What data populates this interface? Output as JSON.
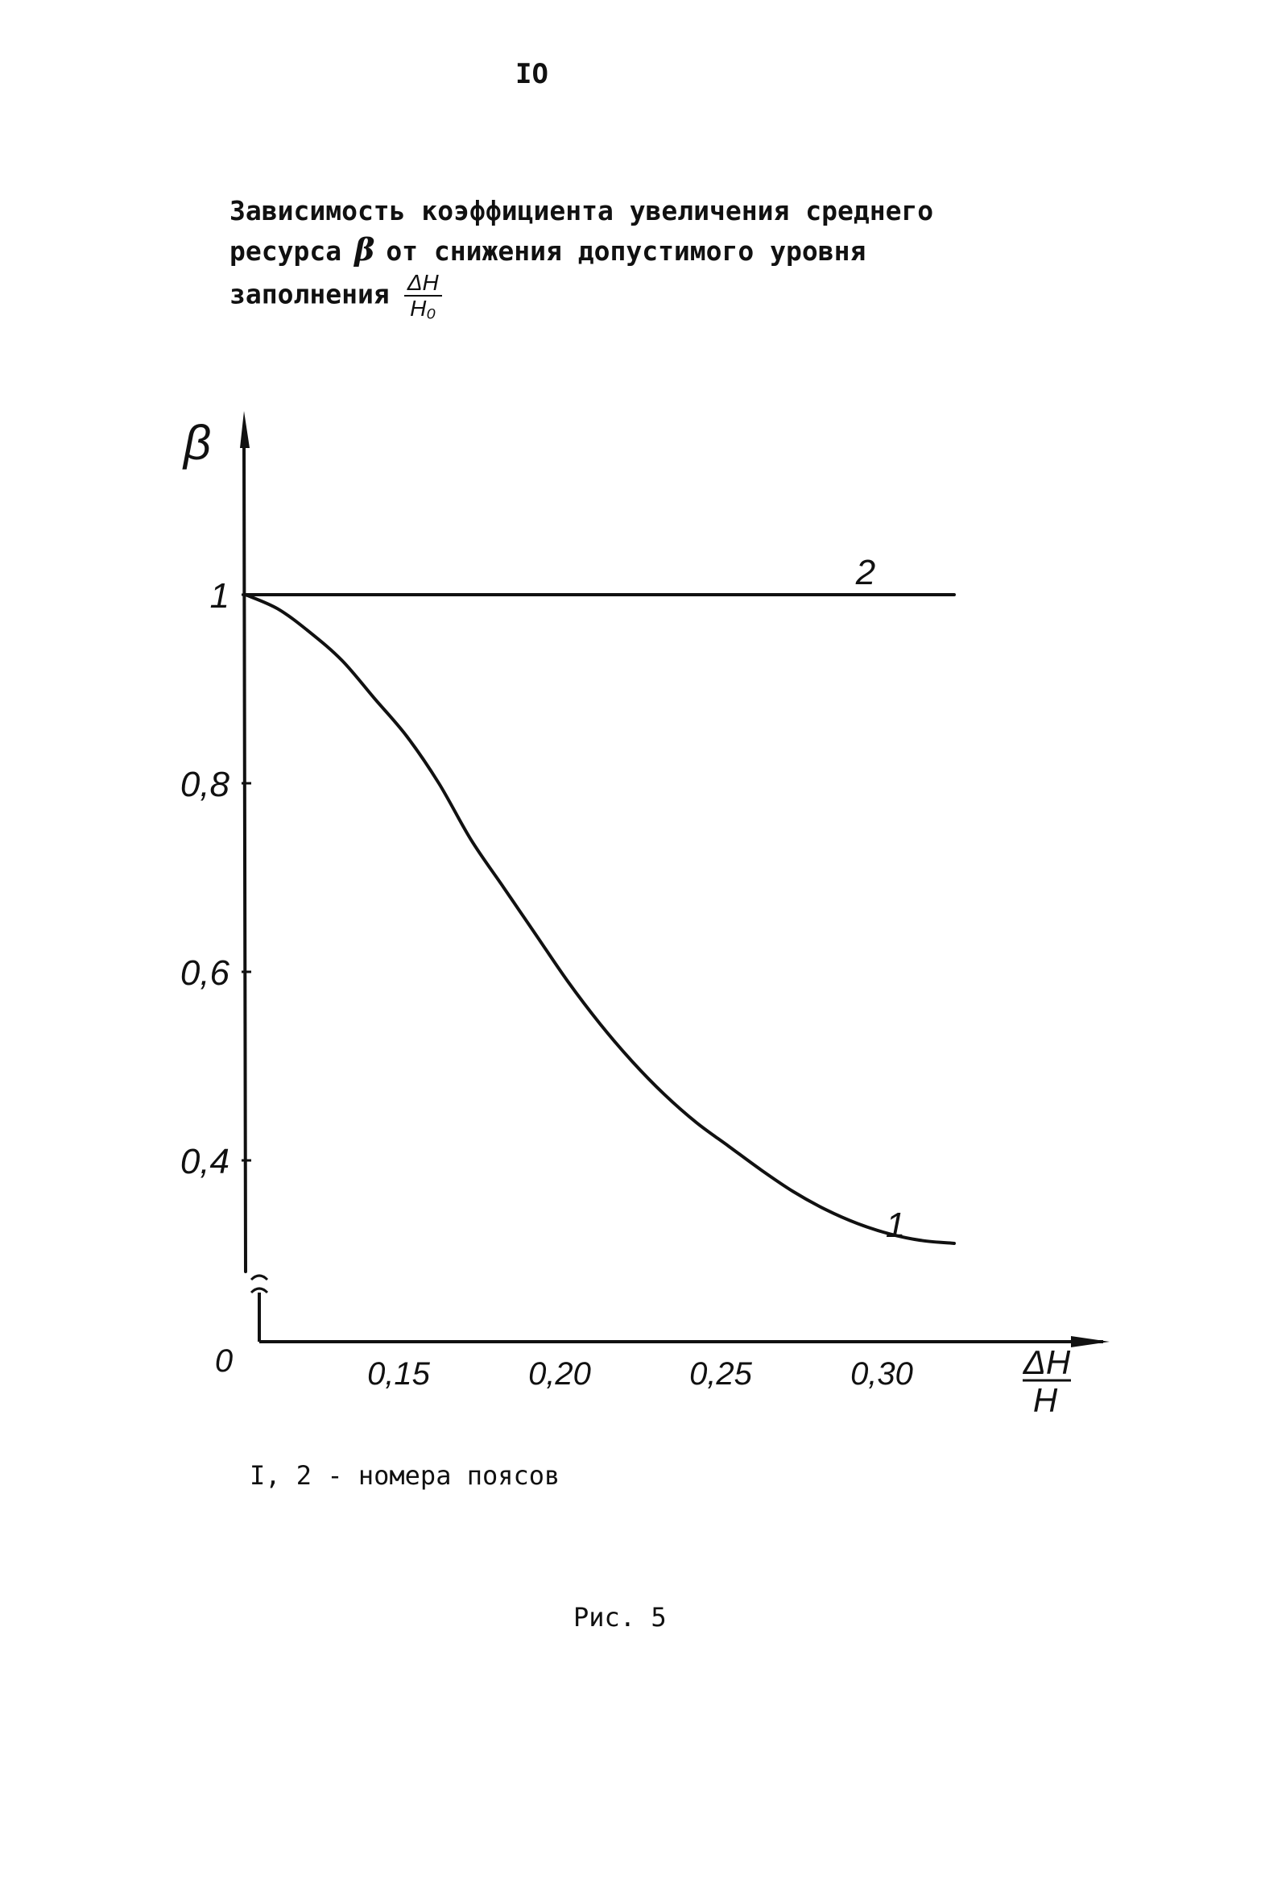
{
  "page_number": "IO",
  "caption": {
    "line1": "Зависимость коэффициента увеличения среднего",
    "line2_pre": "ресурса",
    "line2_symbol": "β",
    "line2_post": "от снижения допустимого уровня",
    "line3_pre": "заполнения",
    "fraction_num": "ΔH",
    "fraction_den": "H₀"
  },
  "chart_data": {
    "type": "line",
    "y_axis_label": "β",
    "x_axis_label_num": "ΔH",
    "x_axis_label_den": "H",
    "origin_label": "0",
    "y_ticks": [
      {
        "value": 1.0,
        "label": "1"
      },
      {
        "value": 0.8,
        "label": "0,8"
      },
      {
        "value": 0.6,
        "label": "0,6"
      },
      {
        "value": 0.4,
        "label": "0,4"
      }
    ],
    "x_ticks": [
      {
        "value": 0.15,
        "label": "0,15"
      },
      {
        "value": 0.2,
        "label": "0,20"
      },
      {
        "value": 0.25,
        "label": "0,25"
      },
      {
        "value": 0.3,
        "label": "0,30"
      }
    ],
    "y_axis_break": true,
    "grid": false,
    "series": [
      {
        "label": "1",
        "x": [
          0.1,
          0.11,
          0.12,
          0.13,
          0.14,
          0.15,
          0.16,
          0.17,
          0.18,
          0.19,
          0.2,
          0.21,
          0.22,
          0.23,
          0.24,
          0.25,
          0.26,
          0.27,
          0.28,
          0.29,
          0.3,
          0.31,
          0.32
        ],
        "y": [
          1.0,
          0.985,
          0.96,
          0.93,
          0.89,
          0.85,
          0.8,
          0.74,
          0.69,
          0.64,
          0.59,
          0.545,
          0.505,
          0.47,
          0.44,
          0.415,
          0.39,
          0.367,
          0.348,
          0.333,
          0.322,
          0.315,
          0.312
        ]
      },
      {
        "label": "2",
        "x": [
          0.1,
          0.32
        ],
        "y": [
          1.0,
          1.0
        ]
      }
    ]
  },
  "legend_note": "I, 2 - номера поясов",
  "figure_label": "Рис. 5"
}
